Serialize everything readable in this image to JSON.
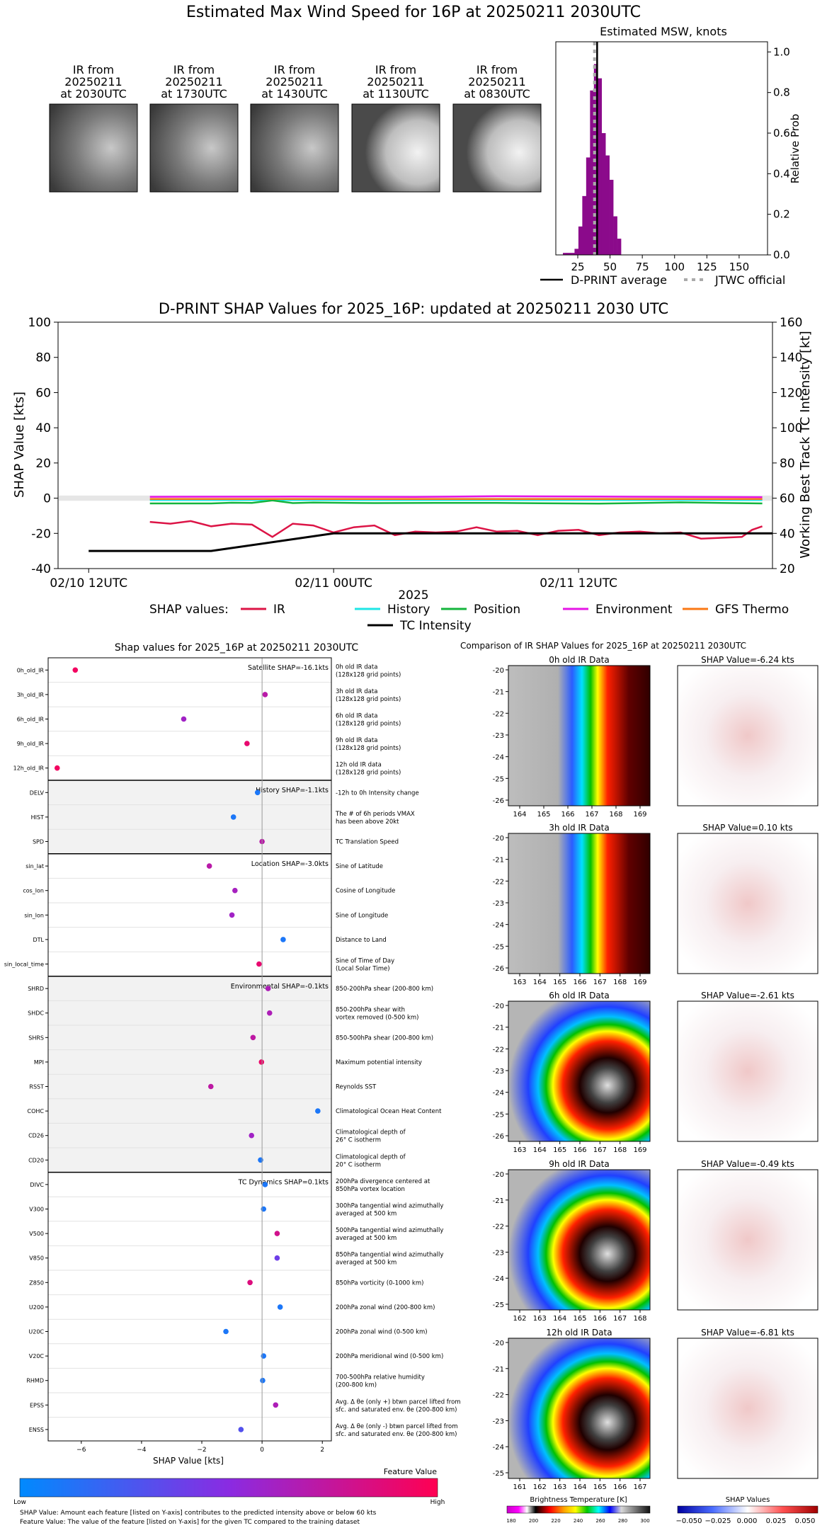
{
  "main_title": "Estimated Max Wind Speed for 16P at 20250211 2030UTC",
  "ir_thumbs": [
    {
      "line1": "IR from",
      "line2": "20250211",
      "line3": "at 2030UTC"
    },
    {
      "line1": "IR from",
      "line2": "20250211",
      "line3": "at 1730UTC"
    },
    {
      "line1": "IR from",
      "line2": "20250211",
      "line3": "at 1430UTC"
    },
    {
      "line1": "IR from",
      "line2": "20250211",
      "line3": "at 1130UTC"
    },
    {
      "line1": "IR from",
      "line2": "20250211",
      "line3": "at 0830UTC"
    }
  ],
  "chart_data": [
    {
      "type": "bar",
      "title": "Estimated MSW, knots",
      "ylabel": "Relative Prob",
      "xlim": [
        8,
        172
      ],
      "ylim": [
        0,
        1.05
      ],
      "xticks": [
        "25",
        "50",
        "75",
        "100",
        "125",
        "150"
      ],
      "yticks": [
        "0.0",
        "0.2",
        "0.4",
        "0.6",
        "0.8",
        "1.0"
      ],
      "bar_color": "#8b0a8b",
      "bin_width": 3,
      "bins": [
        {
          "x": 15,
          "value": 0.01
        },
        {
          "x": 18,
          "value": 0.01
        },
        {
          "x": 21,
          "value": 0.01
        },
        {
          "x": 24,
          "value": 0.03
        },
        {
          "x": 27,
          "value": 0.14
        },
        {
          "x": 30,
          "value": 0.29
        },
        {
          "x": 33,
          "value": 0.48
        },
        {
          "x": 36,
          "value": 0.81
        },
        {
          "x": 39,
          "value": 0.94
        },
        {
          "x": 42,
          "value": 0.87
        },
        {
          "x": 45,
          "value": 0.6
        },
        {
          "x": 48,
          "value": 0.49
        },
        {
          "x": 51,
          "value": 0.37
        },
        {
          "x": 54,
          "value": 0.19
        },
        {
          "x": 57,
          "value": 0.08
        }
      ],
      "dprint_average": 40,
      "jtwc_official": 38,
      "legend": {
        "dprint": "D-PRINT average",
        "jtwc": "JTWC official"
      }
    },
    {
      "type": "line",
      "title": "D-PRINT SHAP Values for 2025_16P: updated at 20250211 2030 UTC",
      "ylabel": "SHAP Value [kts]",
      "y2label": "Working Best Track TC Intensity [kt]",
      "xlabel": "2025",
      "xticks": [
        "02/10 12UTC",
        "02/11 00UTC",
        "02/11 12UTC"
      ],
      "ylim": [
        -40,
        100
      ],
      "y2lim": [
        20,
        160
      ],
      "yticks": [
        "-40",
        "-20",
        "0",
        "20",
        "40",
        "60",
        "80",
        "100"
      ],
      "y2ticks": [
        "20",
        "40",
        "60",
        "80",
        "100",
        "120",
        "140",
        "160"
      ],
      "x_hours_range": [
        -1.5,
        33.5
      ],
      "legend_label": "SHAP values:",
      "series": [
        {
          "name": "IR",
          "color": "#dc1446",
          "x": [
            3,
            4,
            5,
            6,
            7,
            8,
            9,
            10,
            11,
            12,
            13,
            14,
            15,
            16,
            17,
            18,
            19,
            20,
            21,
            22,
            23,
            24,
            25,
            26,
            27,
            28,
            29,
            30,
            31,
            32,
            32.5,
            33
          ],
          "y": [
            -13.5,
            -14.5,
            -13,
            -16,
            -14.5,
            -15,
            -22,
            -14.5,
            -15.5,
            -19.5,
            -16.5,
            -15.5,
            -21,
            -19,
            -19.5,
            -19,
            -16.5,
            -19,
            -18.5,
            -21,
            -18.5,
            -18,
            -21,
            -19.5,
            -19,
            -20,
            -19.5,
            -23,
            -22.5,
            -22,
            -18,
            -16
          ]
        },
        {
          "name": "History",
          "color": "#1ee6e6",
          "x": [
            3,
            33
          ],
          "y": [
            -1.1,
            -1.1
          ]
        },
        {
          "name": "Position",
          "color": "#14b43c",
          "x": [
            3,
            6,
            7,
            8,
            9,
            10,
            11,
            14,
            17,
            20,
            25,
            29,
            33
          ],
          "y": [
            -3,
            -3,
            -2.6,
            -2.7,
            -1.3,
            -2.8,
            -2.5,
            -2.8,
            -2.7,
            -2.7,
            -3.1,
            -2.4,
            -3
          ]
        },
        {
          "name": "Environment",
          "color": "#e614e6",
          "x": [
            3,
            10,
            16,
            20,
            25,
            33
          ],
          "y": [
            0.8,
            0.9,
            0.7,
            1.1,
            0.9,
            0.6
          ]
        },
        {
          "name": "GFS Thermo",
          "color": "#fa7814",
          "x": [
            3,
            33
          ],
          "y": [
            -0.5,
            -0.5
          ]
        },
        {
          "name": "TC Intensity",
          "color": "#000000",
          "axis": "right",
          "x": [
            0,
            6,
            12,
            18,
            24,
            30,
            33.5
          ],
          "y": [
            30,
            30,
            40,
            40,
            40,
            40,
            40
          ]
        }
      ]
    },
    {
      "type": "scatter",
      "title": "Shap values for 2025_16P at 20250211 2030UTC",
      "xlabel": "SHAP Value [kts]",
      "xlim": [
        -7.1,
        2.3
      ],
      "xticks": [
        -6,
        -4,
        -2,
        0,
        2
      ],
      "colorbar_label": "Feature Value",
      "colorbar_low": "Low",
      "colorbar_high": "High",
      "groups": [
        {
          "title": "Satellite SHAP=-16.1kts",
          "features": [
            {
              "code": "0h_old_IR",
              "desc1": "0h old IR data",
              "desc2": "(128x128 grid points)",
              "shap": -6.2,
              "fv": 0.95
            },
            {
              "code": "3h_old_IR",
              "desc1": "3h old IR data",
              "desc2": "(128x128 grid points)",
              "shap": 0.1,
              "fv": 0.7
            },
            {
              "code": "6h_old_IR",
              "desc1": "6h old IR data",
              "desc2": "(128x128 grid points)",
              "shap": -2.6,
              "fv": 0.6
            },
            {
              "code": "9h_old_IR",
              "desc1": "9h old IR data",
              "desc2": "(128x128 grid points)",
              "shap": -0.5,
              "fv": 0.9
            },
            {
              "code": "12h_old_IR",
              "desc1": "12h old IR data",
              "desc2": "(128x128 grid points)",
              "shap": -6.8,
              "fv": 0.95
            }
          ]
        },
        {
          "title": "History SHAP=-1.1kts",
          "features": [
            {
              "code": "DELV",
              "desc1": "-12h to 0h Intensity change",
              "desc2": "",
              "shap": -0.15,
              "fv": 0.1
            },
            {
              "code": "HIST",
              "desc1": "The # of 6h periods VMAX",
              "desc2": "has been above 20kt",
              "shap": -0.95,
              "fv": 0.1
            },
            {
              "code": "SPD",
              "desc1": "TC Translation Speed",
              "desc2": "",
              "shap": 0.0,
              "fv": 0.7
            }
          ]
        },
        {
          "title": "Location SHAP=-3.0kts",
          "features": [
            {
              "code": "sin_lat",
              "desc1": "Sine of Latitude",
              "desc2": "",
              "shap": -1.75,
              "fv": 0.7
            },
            {
              "code": "cos_lon",
              "desc1": "Cosine of Longitude",
              "desc2": "",
              "shap": -0.9,
              "fv": 0.62
            },
            {
              "code": "sin_lon",
              "desc1": "Sine of Longitude",
              "desc2": "",
              "shap": -1.0,
              "fv": 0.6
            },
            {
              "code": "DTL",
              "desc1": "Distance to Land",
              "desc2": "",
              "shap": 0.7,
              "fv": 0.1
            },
            {
              "code": "sin_local_time",
              "desc1": "Sine of Time of Day",
              "desc2": "(Local Solar Time)",
              "shap": -0.1,
              "fv": 0.9
            }
          ]
        },
        {
          "title": "Environmental SHAP=-0.1kts",
          "features": [
            {
              "code": "SHRD",
              "desc1": "850-200hPa shear (200-800 km)",
              "desc2": "",
              "shap": 0.2,
              "fv": 0.65
            },
            {
              "code": "SHDC",
              "desc1": "850-200hPa shear with",
              "desc2": "vortex removed (0-500 km)",
              "shap": 0.25,
              "fv": 0.65
            },
            {
              "code": "SHRS",
              "desc1": "850-500hPa shear (200-800 km)",
              "desc2": "",
              "shap": -0.3,
              "fv": 0.72
            },
            {
              "code": "MPI",
              "desc1": "Maximum potential intensity",
              "desc2": "",
              "shap": -0.02,
              "fv": 0.92
            },
            {
              "code": "RSST",
              "desc1": "Reynolds SST",
              "desc2": "",
              "shap": -1.7,
              "fv": 0.72
            },
            {
              "code": "COHC",
              "desc1": "Climatological Ocean Heat Content",
              "desc2": "",
              "shap": 1.85,
              "fv": 0.1
            },
            {
              "code": "CD26",
              "desc1": "Climatological depth of",
              "desc2": "26° C isotherm",
              "shap": -0.35,
              "fv": 0.6
            },
            {
              "code": "CD20",
              "desc1": "Climatological depth of",
              "desc2": "20° C isotherm",
              "shap": -0.05,
              "fv": 0.1
            }
          ]
        },
        {
          "title": "TC Dynamics SHAP=0.1kts",
          "features": [
            {
              "code": "DIVC",
              "desc1": "200hPa divergence centered at",
              "desc2": "850hPa vortex location",
              "shap": 0.1,
              "fv": 0.1
            },
            {
              "code": "V300",
              "desc1": "300hPa tangential wind azimuthally",
              "desc2": "averaged at 500 km",
              "shap": 0.05,
              "fv": 0.1
            },
            {
              "code": "V500",
              "desc1": "500hPa tangential wind azimuthally",
              "desc2": "averaged at 500 km",
              "shap": 0.5,
              "fv": 0.8
            },
            {
              "code": "V850",
              "desc1": "850hPa tangential wind azimuthally",
              "desc2": "averaged at 500 km",
              "shap": 0.5,
              "fv": 0.4
            },
            {
              "code": "Z850",
              "desc1": "850hPa vorticity (0-1000 km)",
              "desc2": "",
              "shap": -0.4,
              "fv": 0.85
            },
            {
              "code": "U200",
              "desc1": "200hPa zonal wind (200-800 km)",
              "desc2": "",
              "shap": 0.6,
              "fv": 0.1
            },
            {
              "code": "U20C",
              "desc1": "200hPa zonal wind (0-500 km)",
              "desc2": "",
              "shap": -1.2,
              "fv": 0.1
            },
            {
              "code": "V20C",
              "desc1": "200hPa meridional wind (0-500 km)",
              "desc2": "",
              "shap": 0.05,
              "fv": 0.1
            },
            {
              "code": "RHMD",
              "desc1": "700-500hPa relative humidity",
              "desc2": "(200-800 km)",
              "shap": 0.02,
              "fv": 0.1
            },
            {
              "code": "EPSS",
              "desc1": "Avg. Δ θe (only +) btwn parcel lifted from",
              "desc2": "sfc. and saturated env. θe (200-800 km)",
              "shap": 0.45,
              "fv": 0.65
            },
            {
              "code": "ENSS",
              "desc1": "Avg. Δ θe (only -) btwn parcel lifted from",
              "desc2": "sfc. and saturated env. θe (200-800 km)",
              "shap": -0.7,
              "fv": 0.3
            }
          ]
        }
      ]
    },
    {
      "type": "heatmap",
      "title": "Comparison of IR SHAP Values for 2025_16P at 20250211 2030UTC",
      "panels": [
        {
          "ir_title": "0h old IR Data",
          "shap_title": "SHAP Value=-6.24 kts",
          "xticks": [
            "164",
            "165",
            "166",
            "167",
            "168",
            "169"
          ],
          "yticks": [
            "-20",
            "-21",
            "-22",
            "-23",
            "-24",
            "-25",
            "-26"
          ]
        },
        {
          "ir_title": "3h old IR Data",
          "shap_title": "SHAP Value=0.10 kts",
          "xticks": [
            "163",
            "164",
            "165",
            "166",
            "167",
            "168",
            "169"
          ],
          "yticks": [
            "-20",
            "-21",
            "-22",
            "-23",
            "-24",
            "-25",
            "-26"
          ]
        },
        {
          "ir_title": "6h old IR Data",
          "shap_title": "SHAP Value=-2.61 kts",
          "xticks": [
            "163",
            "164",
            "165",
            "166",
            "167",
            "168",
            "169"
          ],
          "yticks": [
            "-20",
            "-21",
            "-22",
            "-23",
            "-24",
            "-25",
            "-26"
          ]
        },
        {
          "ir_title": "9h old IR Data",
          "shap_title": "SHAP Value=-0.49 kts",
          "xticks": [
            "162",
            "163",
            "164",
            "165",
            "166",
            "167",
            "168"
          ],
          "yticks": [
            "-20",
            "-21",
            "-22",
            "-23",
            "-24",
            "-25"
          ]
        },
        {
          "ir_title": "12h old IR Data",
          "shap_title": "SHAP Value=-6.81 kts",
          "xticks": [
            "161",
            "162",
            "163",
            "164",
            "165",
            "166",
            "167"
          ],
          "yticks": [
            "-20",
            "-21",
            "-22",
            "-23",
            "-24",
            "-25"
          ]
        }
      ],
      "bt_label": "Brightness Temperature [K]",
      "bt_ticks": [
        "180",
        "200",
        "220",
        "240",
        "260",
        "280",
        "300"
      ],
      "shap_label": "SHAP Values",
      "shap_ticks": [
        "−0.050",
        "−0.025",
        "0.000",
        "0.025",
        "0.050"
      ]
    }
  ],
  "footnote1": "SHAP Value: Amount each feature [listed on Y-axis] contributes to the predicted intensity above or below 60 kts",
  "footnote2": "Feature Value: The value of the feature [listed on Y-axis] for the given TC compared to the training dataset"
}
